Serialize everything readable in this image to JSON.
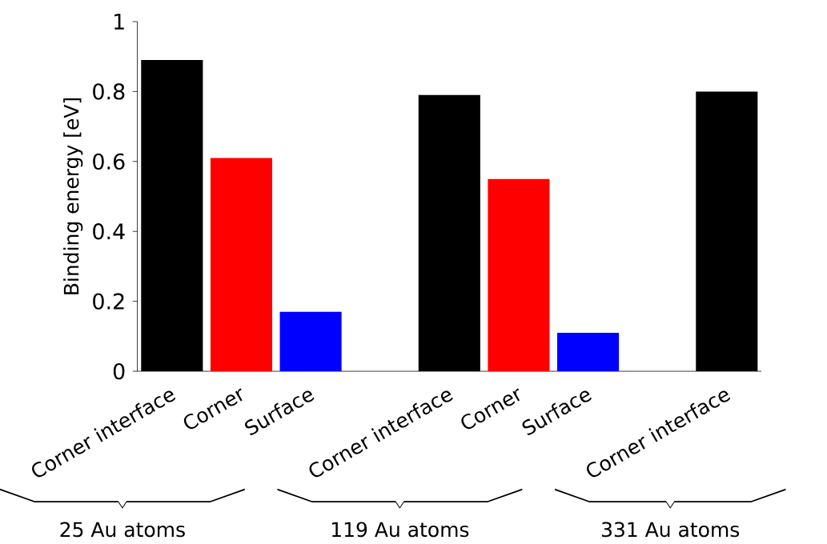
{
  "chart_data": {
    "type": "bar",
    "ylabel": "Binding energy [eV]",
    "categories": [
      "Corner interface",
      "Corner",
      "Surface",
      null,
      "Corner interface",
      "Corner",
      "Surface",
      null,
      "Corner interface"
    ],
    "values": [
      0.89,
      0.61,
      0.17,
      null,
      0.79,
      0.55,
      0.11,
      null,
      0.8
    ],
    "colors": [
      "#000000",
      "#ff0000",
      "#0000ff",
      null,
      "#000000",
      "#ff0000",
      "#0000ff",
      null,
      "#000000"
    ],
    "ylim": [
      0,
      1
    ],
    "yticks": [
      0,
      0.2,
      0.4,
      0.6,
      0.8,
      1
    ],
    "annotations": [
      "25 Au atoms",
      "119 Au atoms",
      "331 Au atoms"
    ]
  }
}
